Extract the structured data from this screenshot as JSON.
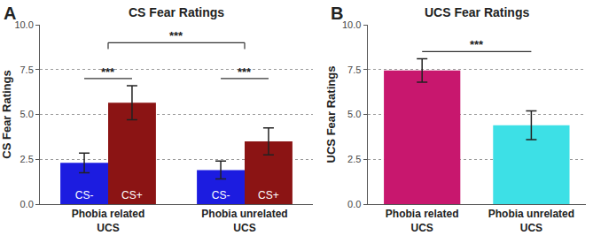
{
  "chart_data": [
    {
      "type": "bar",
      "panel_label": "A",
      "title": "CS Fear Ratings",
      "y_label": "CS Fear Ratings",
      "categories": [
        "Phobia related UCS",
        "Phobia unrelated UCS"
      ],
      "series": [
        {
          "name": "CS-",
          "color": "#1c1ce0",
          "values": [
            2.3,
            1.9
          ],
          "errors": [
            0.55,
            0.5
          ]
        },
        {
          "name": "CS+",
          "color": "#8b1414",
          "values": [
            5.65,
            3.5
          ],
          "errors": [
            0.95,
            0.75
          ]
        }
      ],
      "ylim": [
        0,
        10
      ],
      "yticks": [
        {
          "value": 0,
          "label": "0.0"
        },
        2.5,
        {
          "value": 5,
          "label": "5.0"
        },
        7.5,
        {
          "value": 10,
          "label": "10.0"
        }
      ],
      "grid": true,
      "annotations": [
        "***",
        "***",
        "***"
      ]
    },
    {
      "type": "bar",
      "panel_label": "B",
      "title": "UCS Fear Ratings",
      "y_label": "UCS Fear Ratings",
      "categories": [
        "Phobia related UCS",
        "Phobia unrelated UCS"
      ],
      "values": [
        7.45,
        4.4
      ],
      "errors": [
        0.65,
        0.8
      ],
      "colors": [
        "#c8176e",
        "#3de0e6"
      ],
      "ylim": [
        0,
        10
      ],
      "yticks": [
        {
          "value": 0,
          "label": "0.0"
        },
        2.5,
        {
          "value": 5,
          "label": "5.0"
        },
        7.5,
        {
          "value": 10,
          "label": "10.0"
        }
      ],
      "grid": true,
      "annotations": [
        "***"
      ]
    }
  ]
}
